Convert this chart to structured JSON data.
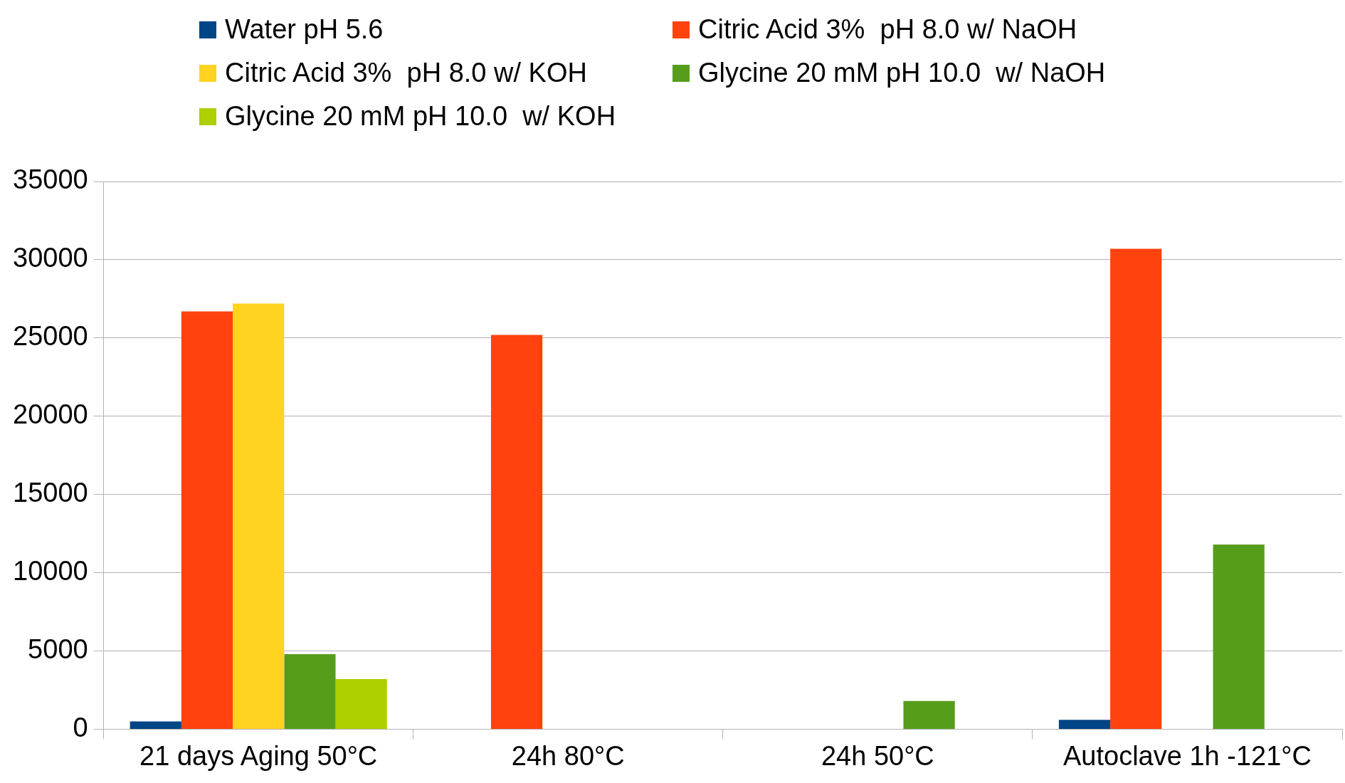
{
  "chart_data": {
    "type": "bar",
    "categories": [
      "21 days Aging 50°C",
      "24h 80°C",
      "24h 50°C",
      "Autoclave 1h -121°C"
    ],
    "series": [
      {
        "name": "Water pH 5.6",
        "color": "#004586",
        "values": [
          500,
          null,
          null,
          600
        ]
      },
      {
        "name": "Citric Acid 3%  pH 8.0 w/ NaOH",
        "color": "#ff420e",
        "values": [
          26700,
          25200,
          null,
          30700
        ]
      },
      {
        "name": "Citric Acid 3%  pH 8.0 w/ KOH",
        "color": "#ffd320",
        "values": [
          27200,
          null,
          null,
          null
        ]
      },
      {
        "name": "Glycine 20 mM pH 10.0  w/ NaOH",
        "color": "#579d1c",
        "values": [
          4800,
          null,
          1800,
          11800
        ]
      },
      {
        "name": "Glycine 20 mM pH 10.0  w/ KOH",
        "color": "#aecf00",
        "values": [
          3200,
          null,
          null,
          null
        ]
      }
    ],
    "ylim": [
      0,
      35000
    ],
    "yticks": [
      0,
      5000,
      10000,
      15000,
      20000,
      25000,
      30000,
      35000
    ],
    "grid": "y",
    "legend": "top"
  }
}
